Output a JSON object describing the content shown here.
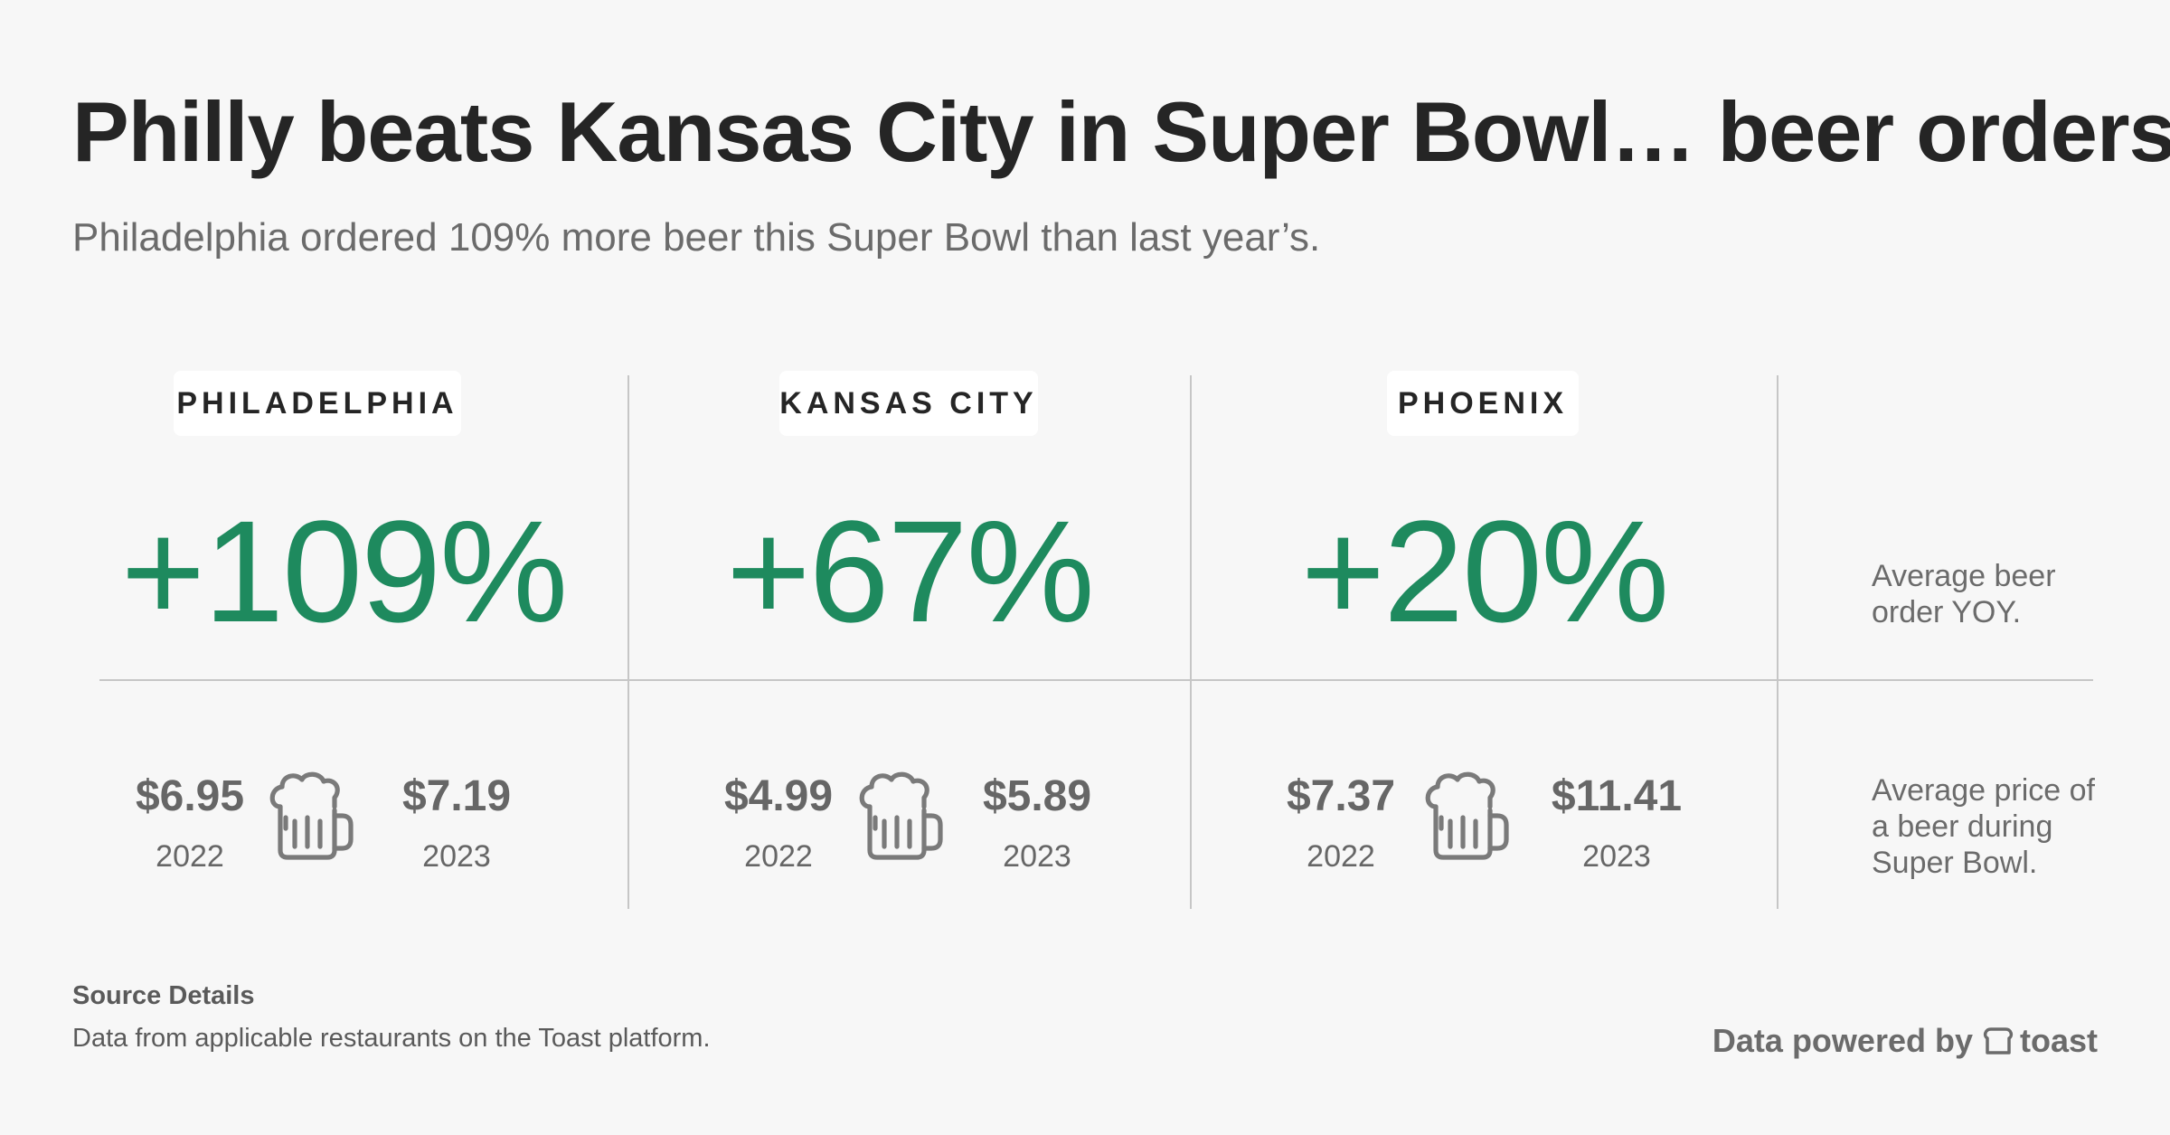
{
  "header": {
    "title": "Philly beats Kansas City in Super Bowl… beer orders",
    "subtitle": "Philadelphia ordered 109% more beer this Super Bowl than last year’s."
  },
  "cities": [
    {
      "name": "PHILADELPHIA",
      "yoy": "+109%",
      "price_2022": "$6.95",
      "year_a": "2022",
      "price_2023": "$7.19",
      "year_b": "2023"
    },
    {
      "name": "KANSAS CITY",
      "yoy": "+67%",
      "price_2022": "$4.99",
      "year_a": "2022",
      "price_2023": "$5.89",
      "year_b": "2023"
    },
    {
      "name": "PHOENIX",
      "yoy": "+20%",
      "price_2022": "$7.37",
      "year_a": "2022",
      "price_2023": "$11.41",
      "year_b": "2023"
    }
  ],
  "notes": {
    "yoy_line1": "Average beer",
    "yoy_line2": "order YOY.",
    "price_line1": "Average price of",
    "price_line2": "a beer during",
    "price_line3": "Super Bowl."
  },
  "footer": {
    "source_title": "Source Details",
    "source_text": "Data from applicable restaurants on the Toast platform.",
    "powered_by": "Data powered by",
    "brand": "toast"
  },
  "icons": {
    "beer": "beer-mug-icon",
    "toast": "toast-logo-icon"
  },
  "colors": {
    "accent": "#1e8a5e",
    "text": "#252525",
    "muted": "#6b6b6b",
    "background": "#f7f7f7"
  }
}
